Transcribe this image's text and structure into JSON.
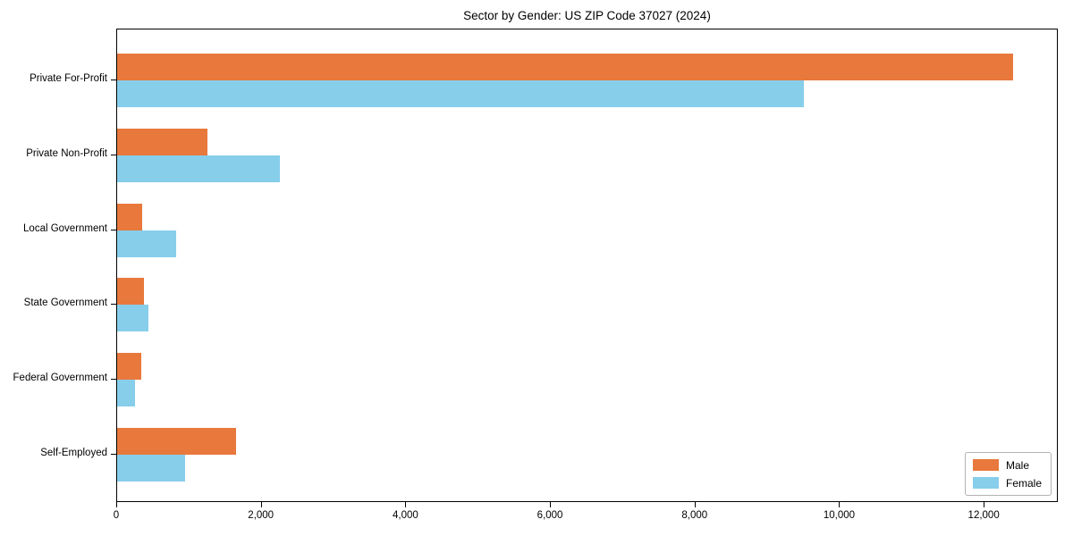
{
  "chart_data": {
    "type": "bar",
    "orientation": "horizontal",
    "title": "Sector by Gender: US ZIP Code 37027 (2024)",
    "categories": [
      "Private For-Profit",
      "Private Non-Profit",
      "Local Government",
      "State Government",
      "Federal Government",
      "Self-Employed"
    ],
    "series": [
      {
        "name": "Male",
        "color": "#e8783c",
        "values": [
          12400,
          1250,
          350,
          370,
          330,
          1640
        ]
      },
      {
        "name": "Female",
        "color": "#87ceeb",
        "values": [
          9500,
          2250,
          820,
          430,
          250,
          940
        ]
      }
    ],
    "xlabel": "",
    "ylabel": "",
    "xlim": [
      0,
      13000
    ],
    "x_ticks": [
      0,
      2000,
      4000,
      6000,
      8000,
      10000,
      12000
    ],
    "x_tick_labels": [
      "0",
      "2,000",
      "4,000",
      "6,000",
      "8,000",
      "10,000",
      "12,000"
    ],
    "grid": false,
    "legend_position": "lower right",
    "background_color": "#ffffff",
    "axis_color": "#000000"
  }
}
